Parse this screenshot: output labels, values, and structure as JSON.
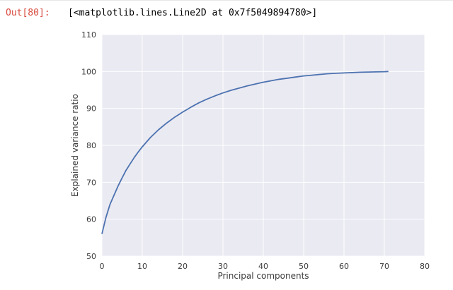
{
  "output": {
    "prompt": "Out[80]:",
    "repr": "[<matplotlib.lines.Line2D at 0x7f5049894780>]"
  },
  "chart_data": {
    "type": "line",
    "title": "",
    "xlabel": "Principal components",
    "ylabel": "Explained variance ratio",
    "xlim": [
      0,
      80
    ],
    "ylim": [
      50,
      110
    ],
    "xticks": [
      0,
      10,
      20,
      30,
      40,
      50,
      60,
      70,
      80
    ],
    "yticks": [
      50,
      60,
      70,
      80,
      90,
      100,
      110
    ],
    "grid": true,
    "colors": {
      "line": "#4c72b0",
      "background": "#eaeaf2",
      "grid": "#ffffff"
    },
    "series": [
      {
        "x": [
          0,
          1,
          2,
          3,
          4,
          5,
          6,
          7,
          8,
          9,
          10,
          12,
          14,
          16,
          18,
          20,
          22,
          24,
          26,
          28,
          30,
          32,
          34,
          36,
          38,
          40,
          42,
          44,
          46,
          48,
          50,
          52,
          54,
          56,
          58,
          60,
          62,
          64,
          66,
          68,
          70,
          71
        ],
        "y": [
          56,
          60.5,
          64,
          66.5,
          69,
          71.2,
          73.3,
          75,
          76.7,
          78.2,
          79.6,
          82.1,
          84.2,
          86.0,
          87.6,
          89.0,
          90.3,
          91.5,
          92.5,
          93.4,
          94.2,
          94.9,
          95.5,
          96.1,
          96.6,
          97.1,
          97.5,
          97.9,
          98.2,
          98.5,
          98.8,
          99.0,
          99.2,
          99.4,
          99.5,
          99.6,
          99.7,
          99.8,
          99.85,
          99.9,
          99.95,
          100
        ]
      }
    ]
  }
}
